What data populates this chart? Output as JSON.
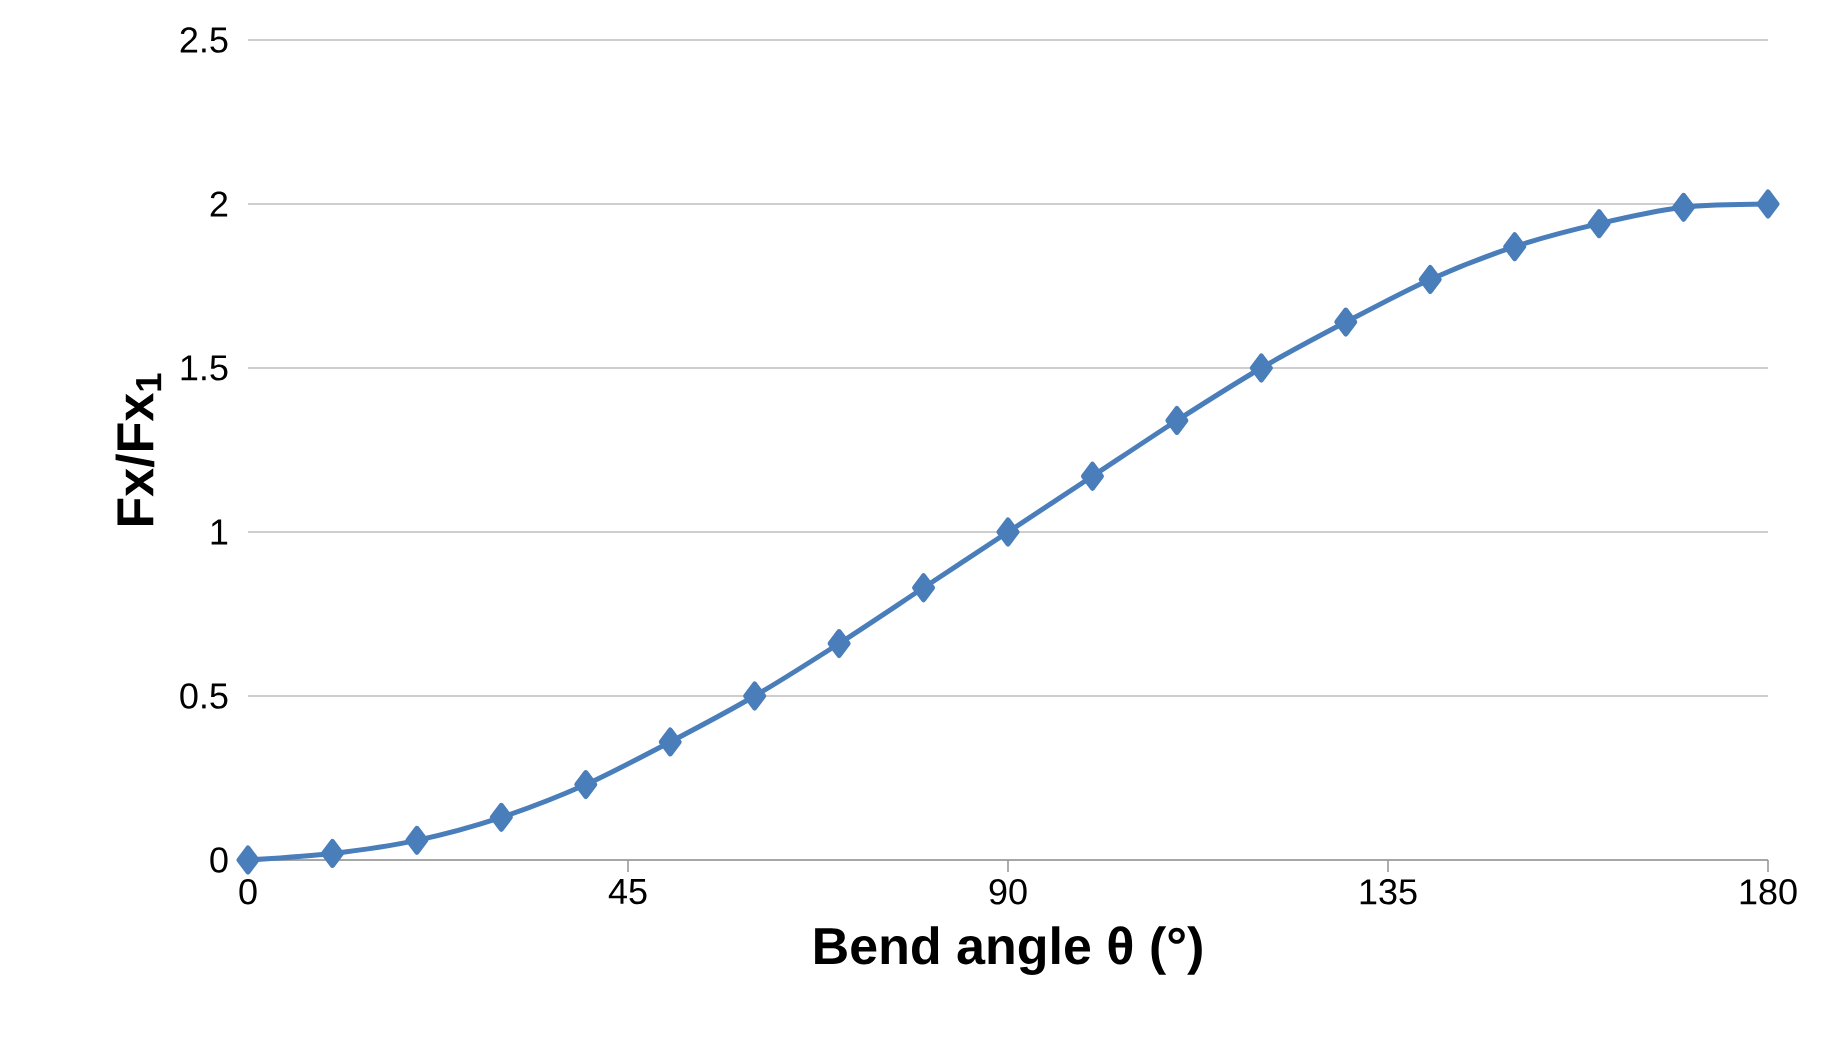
{
  "chart_data": {
    "type": "line",
    "xlabel": "Bend angle θ (°)",
    "ylabel": "Fx/Fx$_{1}$",
    "x": [
      0,
      10,
      20,
      30,
      40,
      50,
      60,
      70,
      80,
      90,
      100,
      110,
      120,
      130,
      140,
      150,
      160,
      170,
      180
    ],
    "series": [
      {
        "color": "#4a7ebb",
        "values": [
          0,
          0.02,
          0.06,
          0.13,
          0.23,
          0.36,
          0.5,
          0.66,
          0.83,
          1,
          1.17,
          1.34,
          1.5,
          1.64,
          1.77,
          1.87,
          1.94,
          1.99,
          2
        ]
      }
    ],
    "xlim": [
      0,
      180
    ],
    "xticks": [
      0,
      45,
      90,
      135,
      180
    ],
    "ylim": [
      0,
      2.5
    ],
    "yticks": [
      0,
      0.5,
      1,
      1.5,
      2,
      2.5
    ],
    "grid": "y",
    "marker": "diamond",
    "line_style": "solid"
  }
}
